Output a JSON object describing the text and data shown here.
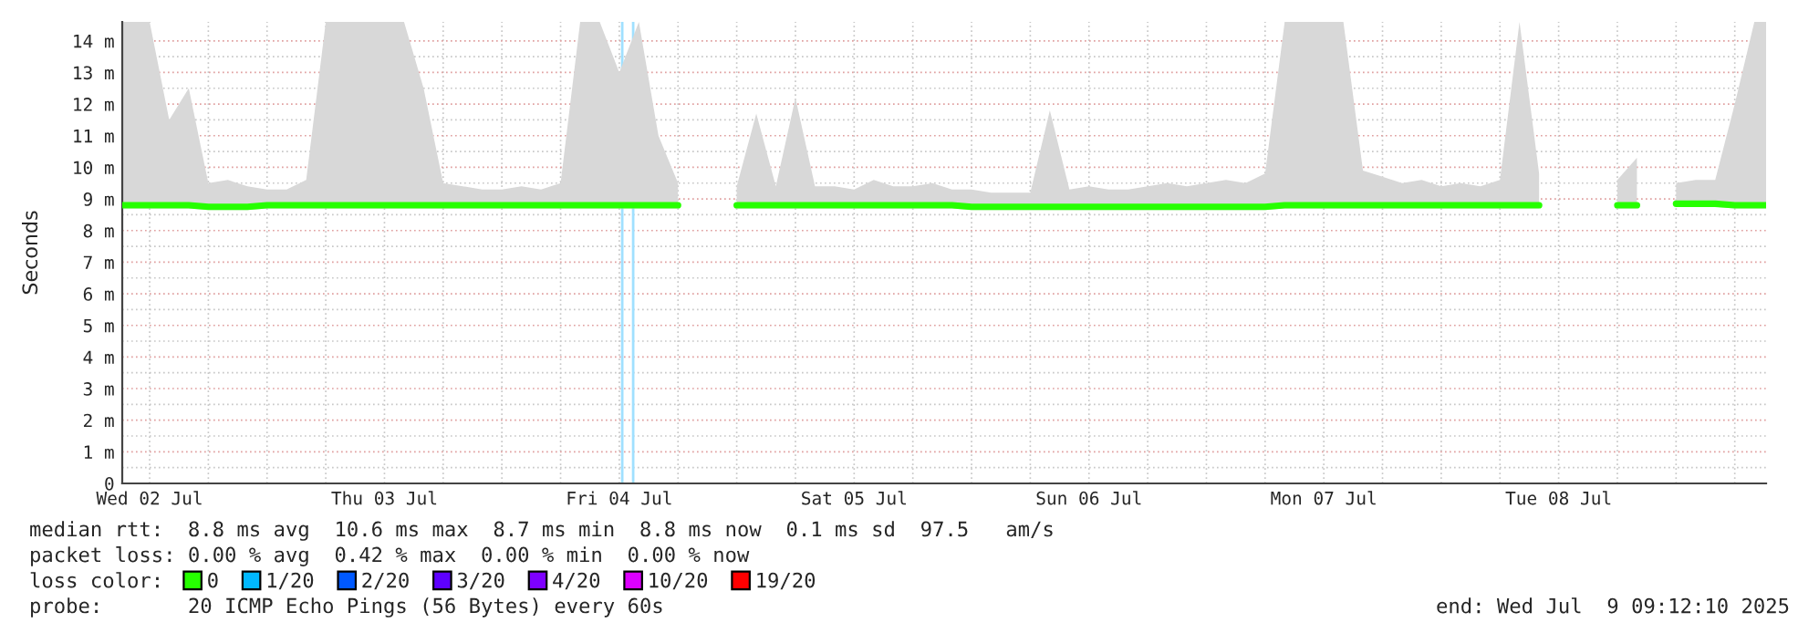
{
  "chart_data": {
    "type": "line",
    "ylabel": "Seconds",
    "legend_title": "loss color:",
    "legend": "bottom",
    "grid": true,
    "line_style": "solid",
    "marker": "none",
    "annotations": [
      "median rtt:  8.8 ms avg  10.6 ms max  8.7 ms min  8.8 ms now  0.1 ms sd  97.5   am/s",
      "packet loss: 0.00 % avg  0.42 % max  0.00 % min  0.00 % now",
      "probe:       20 ICMP Echo Pings (56 Bytes) every 60s",
      "end: Wed Jul  9 09:12:10 2025"
    ],
    "xlim": [
      "2025-07-02T09:12",
      "2025-07-09T09:12"
    ],
    "xticks": [
      {
        "value": "2025-07-02T12:00",
        "label": "Wed 02 Jul"
      },
      {
        "value": "2025-07-02T18:00",
        "label": null
      },
      {
        "value": "2025-07-03T00:00",
        "label": null
      },
      {
        "value": "2025-07-03T06:00",
        "label": null
      },
      {
        "value": "2025-07-03T12:00",
        "label": "Thu 03 Jul"
      },
      {
        "value": "2025-07-03T18:00",
        "label": null
      },
      {
        "value": "2025-07-04T00:00",
        "label": null
      },
      {
        "value": "2025-07-04T06:00",
        "label": null
      },
      {
        "value": "2025-07-04T12:00",
        "label": "Fri 04 Jul"
      },
      {
        "value": "2025-07-04T18:00",
        "label": null
      },
      {
        "value": "2025-07-05T00:00",
        "label": null
      },
      {
        "value": "2025-07-05T06:00",
        "label": null
      },
      {
        "value": "2025-07-05T12:00",
        "label": "Sat 05 Jul"
      },
      {
        "value": "2025-07-05T18:00",
        "label": null
      },
      {
        "value": "2025-07-06T00:00",
        "label": null
      },
      {
        "value": "2025-07-06T06:00",
        "label": null
      },
      {
        "value": "2025-07-06T12:00",
        "label": "Sun 06 Jul"
      },
      {
        "value": "2025-07-06T18:00",
        "label": null
      },
      {
        "value": "2025-07-07T00:00",
        "label": null
      },
      {
        "value": "2025-07-07T06:00",
        "label": null
      },
      {
        "value": "2025-07-07T12:00",
        "label": "Mon 07 Jul"
      },
      {
        "value": "2025-07-07T18:00",
        "label": null
      },
      {
        "value": "2025-07-08T00:00",
        "label": null
      },
      {
        "value": "2025-07-08T06:00",
        "label": null
      },
      {
        "value": "2025-07-08T12:00",
        "label": "Tue 08 Jul"
      },
      {
        "value": "2025-07-08T18:00",
        "label": null
      },
      {
        "value": "2025-07-09T00:00",
        "label": null
      },
      {
        "value": "2025-07-09T06:00",
        "label": null
      }
    ],
    "ylim": [
      0,
      14.6
    ],
    "yticks": [
      0,
      {
        "value": 0.5,
        "label": null
      },
      {
        "value": 1,
        "label": "1 m"
      },
      {
        "value": 1.5,
        "label": null
      },
      {
        "value": 2,
        "label": "2 m"
      },
      {
        "value": 2.5,
        "label": null
      },
      {
        "value": 3,
        "label": "3 m"
      },
      {
        "value": 3.5,
        "label": null
      },
      {
        "value": 4,
        "label": "4 m"
      },
      {
        "value": 4.5,
        "label": null
      },
      {
        "value": 5,
        "label": "5 m"
      },
      {
        "value": 5.5,
        "label": null
      },
      {
        "value": 6,
        "label": "6 m"
      },
      {
        "value": 6.5,
        "label": null
      },
      {
        "value": 7,
        "label": "7 m"
      },
      {
        "value": 7.5,
        "label": null
      },
      {
        "value": 8,
        "label": "8 m"
      },
      {
        "value": 8.5,
        "label": null
      },
      {
        "value": 9,
        "label": "9 m"
      },
      {
        "value": 9.5,
        "label": null
      },
      {
        "value": 10,
        "label": "10 m"
      },
      {
        "value": 10.5,
        "label": null
      },
      {
        "value": 11,
        "label": "11 m"
      },
      {
        "value": 11.5,
        "label": null
      },
      {
        "value": 12,
        "label": "12 m"
      },
      {
        "value": 12.5,
        "label": null
      },
      {
        "value": 13,
        "label": "13 m"
      },
      {
        "value": 13.5,
        "label": null
      },
      {
        "value": 14,
        "label": "14 m"
      }
    ],
    "ref_lines": [
      {
        "axis": "x",
        "value": "2025-07-04T12:18",
        "color": "#a0e0ff"
      },
      {
        "axis": "x",
        "value": "2025-07-04T13:25",
        "color": "#a0e0ff"
      }
    ],
    "x": [
      "2025-07-02T09:12",
      "2025-07-02T10:00",
      "2025-07-02T12:00",
      "2025-07-02T14:00",
      "2025-07-02T16:00",
      "2025-07-02T18:00",
      "2025-07-02T20:00",
      "2025-07-02T22:00",
      "2025-07-03T00:00",
      "2025-07-03T02:00",
      "2025-07-03T04:00",
      "2025-07-03T06:00",
      "2025-07-03T08:00",
      "2025-07-03T10:00",
      "2025-07-03T12:00",
      "2025-07-03T14:00",
      "2025-07-03T16:00",
      "2025-07-03T18:00",
      "2025-07-03T20:00",
      "2025-07-03T22:00",
      "2025-07-04T00:00",
      "2025-07-04T02:00",
      "2025-07-04T04:00",
      "2025-07-04T06:00",
      "2025-07-04T08:00",
      "2025-07-04T10:00",
      "2025-07-04T12:00",
      "2025-07-04T14:00",
      "2025-07-04T16:00",
      "2025-07-04T18:00",
      "2025-07-04T20:00",
      "2025-07-04T22:00",
      "2025-07-05T00:00",
      "2025-07-05T02:00",
      "2025-07-05T04:00",
      "2025-07-05T06:00",
      "2025-07-05T08:00",
      "2025-07-05T10:00",
      "2025-07-05T12:00",
      "2025-07-05T14:00",
      "2025-07-05T16:00",
      "2025-07-05T18:00",
      "2025-07-05T20:00",
      "2025-07-05T22:00",
      "2025-07-06T00:00",
      "2025-07-06T02:00",
      "2025-07-06T04:00",
      "2025-07-06T06:00",
      "2025-07-06T08:00",
      "2025-07-06T10:00",
      "2025-07-06T12:00",
      "2025-07-06T14:00",
      "2025-07-06T16:00",
      "2025-07-06T18:00",
      "2025-07-06T20:00",
      "2025-07-06T22:00",
      "2025-07-07T00:00",
      "2025-07-07T02:00",
      "2025-07-07T04:00",
      "2025-07-07T06:00",
      "2025-07-07T08:00",
      "2025-07-07T10:00",
      "2025-07-07T12:00",
      "2025-07-07T14:00",
      "2025-07-07T16:00",
      "2025-07-07T18:00",
      "2025-07-07T20:00",
      "2025-07-07T22:00",
      "2025-07-08T00:00",
      "2025-07-08T02:00",
      "2025-07-08T04:00",
      "2025-07-08T06:00",
      "2025-07-08T08:00",
      "2025-07-08T10:00",
      "2025-07-08T12:00",
      "2025-07-08T14:00",
      "2025-07-08T16:00",
      "2025-07-08T18:00",
      "2025-07-08T20:00",
      "2025-07-08T22:00",
      "2025-07-09T00:00",
      "2025-07-09T02:00",
      "2025-07-09T04:00",
      "2025-07-09T06:00",
      "2025-07-09T08:00",
      "2025-07-09T09:12"
    ],
    "series": [
      {
        "name": "0",
        "color": "#26ff00",
        "values": [
          8.8,
          8.8,
          8.8,
          8.8,
          8.8,
          8.75,
          8.75,
          8.75,
          8.8,
          8.8,
          8.8,
          8.8,
          8.8,
          8.8,
          8.8,
          8.8,
          8.8,
          8.8,
          8.8,
          8.8,
          8.8,
          8.8,
          8.8,
          8.8,
          8.8,
          8.8,
          8.8,
          8.8,
          8.8,
          8.8,
          null,
          null,
          8.8,
          8.8,
          8.8,
          8.8,
          8.8,
          8.8,
          8.8,
          8.8,
          8.8,
          8.8,
          8.8,
          8.8,
          8.75,
          8.75,
          8.75,
          8.75,
          8.75,
          8.75,
          8.75,
          8.75,
          8.75,
          8.75,
          8.75,
          8.75,
          8.75,
          8.75,
          8.75,
          8.75,
          8.8,
          8.8,
          8.8,
          8.8,
          8.8,
          8.8,
          8.8,
          8.8,
          8.8,
          8.8,
          8.8,
          8.8,
          8.8,
          8.8,
          null,
          null,
          null,
          8.8,
          8.8,
          null,
          8.85,
          8.85,
          8.85,
          8.8,
          8.8,
          8.8
        ],
        "lower": [
          8.7,
          8.7,
          8.7,
          8.7,
          8.7,
          8.65,
          8.65,
          8.65,
          8.7,
          8.7,
          8.7,
          8.7,
          8.7,
          8.7,
          8.7,
          8.7,
          8.7,
          8.7,
          8.7,
          8.7,
          8.7,
          8.7,
          8.7,
          8.7,
          8.7,
          8.7,
          8.7,
          8.7,
          8.7,
          8.7,
          null,
          null,
          8.7,
          8.7,
          8.7,
          8.7,
          8.7,
          8.7,
          8.7,
          8.7,
          8.7,
          8.7,
          8.7,
          8.7,
          8.65,
          8.65,
          8.65,
          8.65,
          8.65,
          8.65,
          8.65,
          8.65,
          8.65,
          8.65,
          8.65,
          8.65,
          8.65,
          8.65,
          8.65,
          8.65,
          8.7,
          8.7,
          8.7,
          8.7,
          8.7,
          8.7,
          8.7,
          8.7,
          8.7,
          8.7,
          8.7,
          8.7,
          8.7,
          8.7,
          null,
          null,
          null,
          8.7,
          8.7,
          null,
          8.75,
          8.75,
          8.75,
          8.7,
          8.7,
          8.7
        ],
        "upper": [
          14.6,
          14.6,
          14.6,
          11.5,
          12.5,
          9.5,
          9.6,
          9.4,
          9.3,
          9.3,
          9.6,
          14.6,
          14.6,
          14.6,
          14.6,
          14.6,
          12.5,
          9.5,
          9.4,
          9.3,
          9.3,
          9.4,
          9.3,
          9.5,
          14.6,
          14.6,
          13,
          14.6,
          11,
          9.5,
          null,
          null,
          9.4,
          11.7,
          9.4,
          12.2,
          9.4,
          9.4,
          9.3,
          9.6,
          9.4,
          9.4,
          9.5,
          9.3,
          9.3,
          9.2,
          9.2,
          9.2,
          11.8,
          9.3,
          9.4,
          9.3,
          9.3,
          9.4,
          9.5,
          9.4,
          9.5,
          9.6,
          9.5,
          9.8,
          14.6,
          14.6,
          14.6,
          14.6,
          9.9,
          9.7,
          9.5,
          9.6,
          9.4,
          9.5,
          9.4,
          9.6,
          14.6,
          9.8,
          null,
          null,
          null,
          9.6,
          10.3,
          null,
          9.5,
          9.6,
          9.6,
          12,
          14.6,
          14.6
        ]
      },
      {
        "name": "1/20",
        "color": "#00b8ff",
        "values": [
          null,
          null,
          null,
          null,
          null,
          null,
          null,
          null,
          null,
          null,
          null,
          null,
          null,
          null,
          null,
          null,
          null,
          null,
          null,
          null,
          null,
          null,
          null,
          null,
          null,
          null,
          null,
          null,
          null,
          null,
          null,
          null,
          null,
          null,
          null,
          null,
          null,
          null,
          null,
          null,
          null,
          null,
          null,
          null,
          null,
          null,
          null,
          null,
          null,
          null,
          null,
          null,
          null,
          null,
          null,
          null,
          null,
          null,
          null,
          null,
          null,
          null,
          null,
          null,
          null,
          null,
          null,
          null,
          null,
          null,
          null,
          null,
          null,
          null,
          null,
          null,
          null,
          null,
          null,
          null,
          null,
          null,
          null,
          null,
          null,
          null
        ]
      },
      {
        "name": "2/20",
        "color": "#0059ff",
        "values": [
          null,
          null,
          null,
          null,
          null,
          null,
          null,
          null,
          null,
          null,
          null,
          null,
          null,
          null,
          null,
          null,
          null,
          null,
          null,
          null,
          null,
          null,
          null,
          null,
          null,
          null,
          null,
          null,
          null,
          null,
          null,
          null,
          null,
          null,
          null,
          null,
          null,
          null,
          null,
          null,
          null,
          null,
          null,
          null,
          null,
          null,
          null,
          null,
          null,
          null,
          null,
          null,
          null,
          null,
          null,
          null,
          null,
          null,
          null,
          null,
          null,
          null,
          null,
          null,
          null,
          null,
          null,
          null,
          null,
          null,
          null,
          null,
          null,
          null,
          null,
          null,
          null,
          null,
          null,
          null,
          null,
          null,
          null,
          null,
          null,
          null
        ]
      },
      {
        "name": "3/20",
        "color": "#5e00ff",
        "values": [
          null,
          null,
          null,
          null,
          null,
          null,
          null,
          null,
          null,
          null,
          null,
          null,
          null,
          null,
          null,
          null,
          null,
          null,
          null,
          null,
          null,
          null,
          null,
          null,
          null,
          null,
          null,
          null,
          null,
          null,
          null,
          null,
          null,
          null,
          null,
          null,
          null,
          null,
          null,
          null,
          null,
          null,
          null,
          null,
          null,
          null,
          null,
          null,
          null,
          null,
          null,
          null,
          null,
          null,
          null,
          null,
          null,
          null,
          null,
          null,
          null,
          null,
          null,
          null,
          null,
          null,
          null,
          null,
          null,
          null,
          null,
          null,
          null,
          null,
          null,
          null,
          null,
          null,
          null,
          null,
          null,
          null,
          null,
          null,
          null,
          null
        ]
      },
      {
        "name": "4/20",
        "color": "#7e00ff",
        "values": [
          null,
          null,
          null,
          null,
          null,
          null,
          null,
          null,
          null,
          null,
          null,
          null,
          null,
          null,
          null,
          null,
          null,
          null,
          null,
          null,
          null,
          null,
          null,
          null,
          null,
          null,
          null,
          null,
          null,
          null,
          null,
          null,
          null,
          null,
          null,
          null,
          null,
          null,
          null,
          null,
          null,
          null,
          null,
          null,
          null,
          null,
          null,
          null,
          null,
          null,
          null,
          null,
          null,
          null,
          null,
          null,
          null,
          null,
          null,
          null,
          null,
          null,
          null,
          null,
          null,
          null,
          null,
          null,
          null,
          null,
          null,
          null,
          null,
          null,
          null,
          null,
          null,
          null,
          null,
          null,
          null,
          null,
          null,
          null,
          null,
          null
        ]
      },
      {
        "name": "10/20",
        "color": "#dd00ff",
        "values": [
          null,
          null,
          null,
          null,
          null,
          null,
          null,
          null,
          null,
          null,
          null,
          null,
          null,
          null,
          null,
          null,
          null,
          null,
          null,
          null,
          null,
          null,
          null,
          null,
          null,
          null,
          null,
          null,
          null,
          null,
          null,
          null,
          null,
          null,
          null,
          null,
          null,
          null,
          null,
          null,
          null,
          null,
          null,
          null,
          null,
          null,
          null,
          null,
          null,
          null,
          null,
          null,
          null,
          null,
          null,
          null,
          null,
          null,
          null,
          null,
          null,
          null,
          null,
          null,
          null,
          null,
          null,
          null,
          null,
          null,
          null,
          null,
          null,
          null,
          null,
          null,
          null,
          null,
          null,
          null,
          null,
          null,
          null,
          null,
          null,
          null
        ]
      },
      {
        "name": "19/20",
        "color": "#ff0000",
        "values": [
          null,
          null,
          null,
          null,
          null,
          null,
          null,
          null,
          null,
          null,
          null,
          null,
          null,
          null,
          null,
          null,
          null,
          null,
          null,
          null,
          null,
          null,
          null,
          null,
          null,
          null,
          null,
          null,
          null,
          null,
          null,
          null,
          null,
          null,
          null,
          null,
          null,
          null,
          null,
          null,
          null,
          null,
          null,
          null,
          null,
          null,
          null,
          null,
          null,
          null,
          null,
          null,
          null,
          null,
          null,
          null,
          null,
          null,
          null,
          null,
          null,
          null,
          null,
          null,
          null,
          null,
          null,
          null,
          null,
          null,
          null,
          null,
          null,
          null,
          null,
          null,
          null,
          null,
          null,
          null,
          null,
          null,
          null,
          null,
          null,
          null
        ]
      }
    ]
  }
}
